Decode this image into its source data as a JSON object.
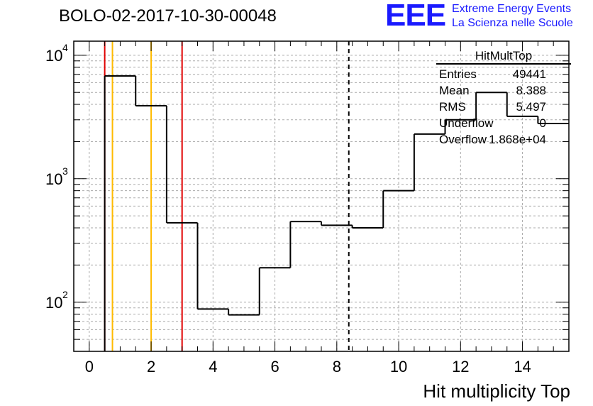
{
  "header": {
    "title": "BOLO-02-2017-10-30-00048",
    "logo_text": "EEE",
    "logo_line1": "Extreme Energy Events",
    "logo_line2": "La Scienza nelle Scuole"
  },
  "colors": {
    "histogram": "#000000",
    "red_lines": "#e00000",
    "orange_lines": "#ffbb00",
    "logo": "#1a1aff",
    "grid": "#aaaaaa"
  },
  "chart_data": {
    "type": "bar",
    "title": "BOLO-02-2017-10-30-00048",
    "xlabel": "Hit multiplicity Top",
    "ylabel": "",
    "xlim": [
      -0.5,
      15.5
    ],
    "ylim": [
      40,
      13000
    ],
    "ylog": true,
    "grid": true,
    "bin_edges": [
      0.5,
      1.5,
      2.5,
      3.5,
      4.5,
      5.5,
      6.5,
      7.5,
      8.5,
      9.5,
      10.5,
      11.5,
      12.5,
      13.5,
      14.5,
      15.5
    ],
    "values": [
      6800,
      3900,
      440,
      88,
      79,
      190,
      450,
      420,
      400,
      800,
      2300,
      3000,
      5000,
      3200,
      2800
    ],
    "x_ticks": [
      0,
      2,
      4,
      6,
      8,
      10,
      12,
      14
    ],
    "x_tick_labels": [
      "0",
      "2",
      "4",
      "6",
      "8",
      "10",
      "12",
      "14"
    ],
    "y_ticks": [
      100,
      1000,
      10000
    ],
    "y_tick_labels": [
      "10",
      "10",
      "10"
    ],
    "y_tick_exponents": [
      "2",
      "3",
      "4"
    ],
    "vertical_lines": [
      {
        "x": 0.5,
        "color": "red"
      },
      {
        "x": 0.75,
        "color": "orange"
      },
      {
        "x": 2.0,
        "color": "orange"
      },
      {
        "x": 3.0,
        "color": "red"
      },
      {
        "x": 8.388,
        "color": "black",
        "style": "dashed"
      }
    ],
    "stats_box": {
      "name": "HitMultTop",
      "rows": [
        {
          "label": "Entries",
          "value": "49441"
        },
        {
          "label": "Mean",
          "value": "8.388"
        },
        {
          "label": "RMS",
          "value": "5.497"
        },
        {
          "label": "Underflow",
          "value": "0"
        },
        {
          "label": "Overflow",
          "value": "1.868e+04"
        }
      ]
    }
  }
}
